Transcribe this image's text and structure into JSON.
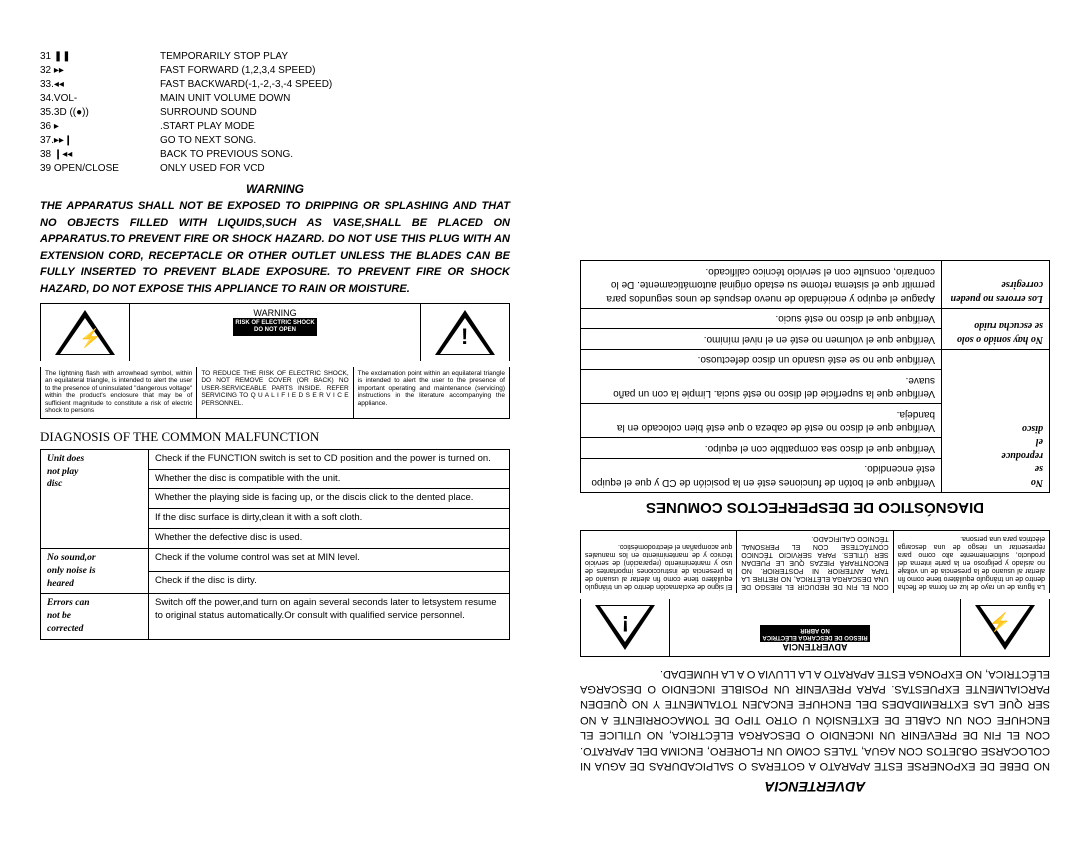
{
  "left": {
    "functions": [
      {
        "num": "31 ❚❚",
        "desc": "TEMPORARILY STOP PLAY"
      },
      {
        "num": "32 ▸▸",
        "desc": "FAST FORWARD (1,2,3,4 SPEED)"
      },
      {
        "num": "33.◂◂",
        "desc": "FAST BACKWARD(-1,-2,-3,-4 SPEED)"
      },
      {
        "num": "34.VOL-",
        "desc": "MAIN UNIT VOLUME DOWN"
      },
      {
        "num": "35.3D ((●))",
        "desc": "SURROUND SOUND"
      },
      {
        "num": "36 ▸",
        "desc": ".START PLAY MODE"
      },
      {
        "num": "37.▸▸❙",
        "desc": "GO TO NEXT SONG."
      },
      {
        "num": "38 ❙◂◂",
        "desc": "BACK TO PREVIOUS SONG."
      },
      {
        "num": "39 OPEN/CLOSE",
        "desc": "ONLY USED FOR VCD"
      }
    ],
    "warning_title": "WARNING",
    "warning_body": "THE APPARATUS SHALL NOT BE EXPOSED TO DRIPPING OR SPLASHING AND THAT NO OBJECTS FILLED WITH LIQUIDS,SUCH AS VASE,SHALL BE PLACED ON APPARATUS.TO PREVENT FIRE OR SHOCK HAZARD. DO NOT USE THIS PLUG WITH AN EXTENSION CORD, RECEPTACLE OR OTHER OUTLET UNLESS THE BLADES CAN BE FULLY INSERTED TO PREVENT BLADE EXPOSURE. TO PREVENT FIRE OR SHOCK HAZARD, DO NOT EXPOSE THIS APPLIANCE TO RAIN OR MOISTURE.",
    "box_left": "The lightning flash with arrowhead symbol, within an equilateral triangle, is intended to alert the user to the presence of uninsulated \"dangerous voltage\" within the product's enclosure that may be of sufficient magnitude to constitute a risk of electric shock to persons",
    "box_mid_title": "WARNING",
    "box_mid_black1": "RISK OF ELECTRIC SHOCK",
    "box_mid_black2": "DO NOT OPEN",
    "box_mid_body": "TO REDUCE THE RISK OF ELECTRIC SHOCK, DO NOT REMOVE COVER (OR BACK) NO USER-SERVICEABLE PARTS INSIDE. REFER SERVICING TO Q U A L I F I E D   S E R V I C E PERSONNEL.",
    "box_right": "The exclamation point within an equilateral triangle is intended to alert the user to the presence of important operating and maintenance (servicing) instructions in the literature accompanying the appliance.",
    "diag_title": "DIAGNOSIS OF THE COMMON MALFUNCTION",
    "diag_rows": [
      {
        "l": "",
        "r": "Check if the FUNCTION switch is set to CD position and the power is turned on."
      },
      {
        "l": "Unit does",
        "r": "Whether the disc is compatible with the unit."
      },
      {
        "l": "not play",
        "r": "Whether the playing side is facing up, or the discis click to the dented place."
      },
      {
        "l": "disc",
        "r": "If the disc surface is dirty,clean it with a soft cloth."
      },
      {
        "l": "",
        "r": "Whether the defective disc is used."
      },
      {
        "l": "No sound,or",
        "r": "Check if the volume control was set at MIN level."
      },
      {
        "l": "only noise is heared",
        "r": "Check if the disc is dirty."
      },
      {
        "l": "Errors can not be corrected",
        "r": "Switch off the power,and turn on again several seconds later to letsystem resume to original status automatically.Or consult  with qualified service personnel."
      }
    ]
  },
  "right": {
    "adv_title": "ADVERTENCIA",
    "adv_body": "NO DEBE DE EXPONERSE ESTE APARATO A GOTERAS O SALPICADURAS DE AGUA NI COLOCARSE OBJETOS CON AGUA, TALES COMO UN FLORERO, ENCIMA DEL APARATO. CON EL FIN DE PREVENIR UN INCENDIO O DESCARGA ELÉCTRICA, NO UTILICE EL ENCHUFE CON UN CABLE DE EXTENSIÓN U OTRO TIPO DE TOMACORRIENTE A NO SER QUE LAS EXTREMIDADES DEL ENCHUFE ENCAJEN TOTALMENTE Y NO QUEDEN PARCIALMENTE EXPUESTAS. PARA PREVENIR UN POSIBLE INCENDIO O DESCARGA ELÉCTRICA, NO EXPONGA ESTE APARATO A LA LLUVIA O A LA HUMEDAD.",
    "box_left_es": "La figura de un rayo de luz en forma de flecha dentro de un triángulo equilátero tiene como fin alertar al usuario de la presencia de un voltaje no aislado y peligroso en la parte interna del producto, suficientemente alto como para representar un riesgo de una descarga eléctrica para una persona.",
    "box_mid_title_es": "ADVERTENCIA",
    "box_mid_black1_es": "RIESGO DE DESCARGA ELÉCTRICA",
    "box_mid_black2_es": "NO ABRIR",
    "box_mid_body_es": "CON EL FIN DE REDUCIR EL RIESGO DE UNA DESCARGA ELÉTRICA, NO RETIRE LA TAPA ANTERIOR NI POSTERIOR. NO ENCONTRARÁ PIEZAS QUE LE PUEDAN SER ÚTILES. PARA SERVICIO TÉCNICO CONTÁCTESE CON EL PERSONAL TÉCNICO CALIFICADO.",
    "box_right_es": "El signo de exclamación dentro de un triángulo equilátero tiene como fin alertar al usuario de la presencia de instrucciones importantes de uso y mantenimiento (reparación) de servicio técnico y de mantenimiento en los manuales que acompañan el electrodoméstico.",
    "diag_title_es": "DIAGNÓSTICO DE DESPERFECTOS COMUNES",
    "diag_rows_es": [
      {
        "l": "No se reproduce el disco",
        "r": "Verifique que el botón de funciones esté en la posición de CD y que el equipo esté encendido.\nVerifique que el disco sea compatible con el equipo.\nVerifique que el disco no esté de cabeza o que esté bien colocado en la bandeja.\nVerifique que la superficie del disco no esté sucia. Limpie la con un paño suave.\nVerifique que no se esté usando un disco defectuoso."
      },
      {
        "l": "No hay sonido o solo se escucha ruido",
        "r": "Verifique que el volumen no esté en el nivel mínimo.\nVerifique que el disco no esté sucio."
      },
      {
        "l": "Los errores no pueden corregirse",
        "r": "Apague el equipo y enciéndalo de nuevo después de unos segundos para permitir que el sistema retome su estado original automáticamente. De lo contrario, consulte con el servicio técnico calificado."
      }
    ]
  }
}
